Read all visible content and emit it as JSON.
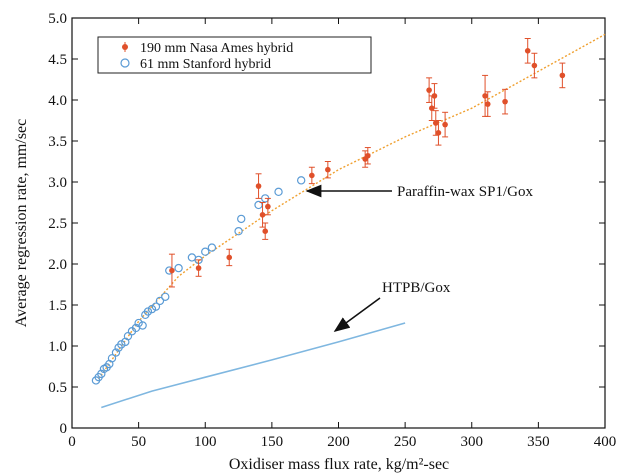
{
  "chart_data": {
    "type": "scatter",
    "xlabel": "Oxidiser mass flux rate, kg/m²-sec",
    "ylabel": "Average regression rate, mm/sec",
    "xlim": [
      0,
      400
    ],
    "ylim": [
      0,
      5.0
    ],
    "xticks": [
      "0",
      "50",
      "100",
      "150",
      "200",
      "250",
      "300",
      "350",
      "400"
    ],
    "yticks": [
      "0",
      "0.5",
      "1.0",
      "1.5",
      "2.0",
      "2.5",
      "3.0",
      "3.5",
      "4.0",
      "4.5",
      "5.0"
    ],
    "grid": false,
    "legend": {
      "placement": "top-left"
    },
    "series": [
      {
        "name": "190 mm Nasa Ames hybrid",
        "marker": "filled-dot",
        "color": "#e0502a",
        "points": [
          {
            "x": 75,
            "y": 1.92,
            "err": 0.2
          },
          {
            "x": 95,
            "y": 1.95,
            "err": 0.1
          },
          {
            "x": 118,
            "y": 2.08,
            "err": 0.1
          },
          {
            "x": 140,
            "y": 2.95,
            "err": 0.15
          },
          {
            "x": 143,
            "y": 2.6,
            "err": 0.15
          },
          {
            "x": 145,
            "y": 2.4,
            "err": 0.1
          },
          {
            "x": 147,
            "y": 2.7,
            "err": 0.1
          },
          {
            "x": 180,
            "y": 3.08,
            "err": 0.1
          },
          {
            "x": 192,
            "y": 3.15,
            "err": 0.1
          },
          {
            "x": 220,
            "y": 3.28,
            "err": 0.1
          },
          {
            "x": 222,
            "y": 3.32,
            "err": 0.1
          },
          {
            "x": 268,
            "y": 4.12,
            "err": 0.15
          },
          {
            "x": 270,
            "y": 3.9,
            "err": 0.15
          },
          {
            "x": 272,
            "y": 4.05,
            "err": 0.15
          },
          {
            "x": 273,
            "y": 3.72,
            "err": 0.15
          },
          {
            "x": 275,
            "y": 3.6,
            "err": 0.15
          },
          {
            "x": 280,
            "y": 3.7,
            "err": 0.15
          },
          {
            "x": 310,
            "y": 4.05,
            "err": 0.25
          },
          {
            "x": 312,
            "y": 3.95,
            "err": 0.15
          },
          {
            "x": 325,
            "y": 3.98,
            "err": 0.15
          },
          {
            "x": 342,
            "y": 4.6,
            "err": 0.15
          },
          {
            "x": 347,
            "y": 4.42,
            "err": 0.15
          },
          {
            "x": 368,
            "y": 4.3,
            "err": 0.15
          }
        ]
      },
      {
        "name": "61 mm Stanford hybrid",
        "marker": "open-circle",
        "color": "#5b9bd5",
        "points": [
          {
            "x": 18,
            "y": 0.58
          },
          {
            "x": 20,
            "y": 0.62
          },
          {
            "x": 22,
            "y": 0.66
          },
          {
            "x": 24,
            "y": 0.72
          },
          {
            "x": 26,
            "y": 0.74
          },
          {
            "x": 28,
            "y": 0.78
          },
          {
            "x": 30,
            "y": 0.85
          },
          {
            "x": 33,
            "y": 0.92
          },
          {
            "x": 35,
            "y": 0.98
          },
          {
            "x": 37,
            "y": 1.02
          },
          {
            "x": 40,
            "y": 1.05
          },
          {
            "x": 42,
            "y": 1.12
          },
          {
            "x": 45,
            "y": 1.18
          },
          {
            "x": 48,
            "y": 1.22
          },
          {
            "x": 50,
            "y": 1.28
          },
          {
            "x": 53,
            "y": 1.25
          },
          {
            "x": 55,
            "y": 1.38
          },
          {
            "x": 57,
            "y": 1.42
          },
          {
            "x": 60,
            "y": 1.45
          },
          {
            "x": 63,
            "y": 1.48
          },
          {
            "x": 66,
            "y": 1.55
          },
          {
            "x": 70,
            "y": 1.6
          },
          {
            "x": 73,
            "y": 1.92
          },
          {
            "x": 80,
            "y": 1.95
          },
          {
            "x": 90,
            "y": 2.08
          },
          {
            "x": 95,
            "y": 2.05
          },
          {
            "x": 100,
            "y": 2.15
          },
          {
            "x": 105,
            "y": 2.2
          },
          {
            "x": 125,
            "y": 2.4
          },
          {
            "x": 127,
            "y": 2.55
          },
          {
            "x": 140,
            "y": 2.72
          },
          {
            "x": 145,
            "y": 2.8
          },
          {
            "x": 155,
            "y": 2.88
          },
          {
            "x": 172,
            "y": 3.02
          }
        ]
      }
    ],
    "lines": [
      {
        "name": "Paraffin-wax SP1/Gox",
        "style": "dotted",
        "color": "#f0a030",
        "points": [
          [
            20,
            0.6
          ],
          [
            50,
            1.3
          ],
          [
            80,
            1.85
          ],
          [
            100,
            2.1
          ],
          [
            150,
            2.65
          ],
          [
            200,
            3.15
          ],
          [
            250,
            3.55
          ],
          [
            300,
            3.9
          ],
          [
            350,
            4.35
          ],
          [
            400,
            4.8
          ]
        ]
      },
      {
        "name": "HTPB/Gox",
        "style": "solid",
        "color": "#7fb7e0",
        "points": [
          [
            22,
            0.25
          ],
          [
            60,
            0.45
          ],
          [
            100,
            0.62
          ],
          [
            150,
            0.83
          ],
          [
            200,
            1.05
          ],
          [
            250,
            1.28
          ]
        ]
      }
    ],
    "annotations": [
      {
        "text": "Paraffin-wax SP1/Gox",
        "arrow_to": [
          170,
          2.86
        ]
      },
      {
        "text": "HTPB/Gox",
        "arrow_to": [
          197,
          1.09
        ]
      }
    ]
  }
}
